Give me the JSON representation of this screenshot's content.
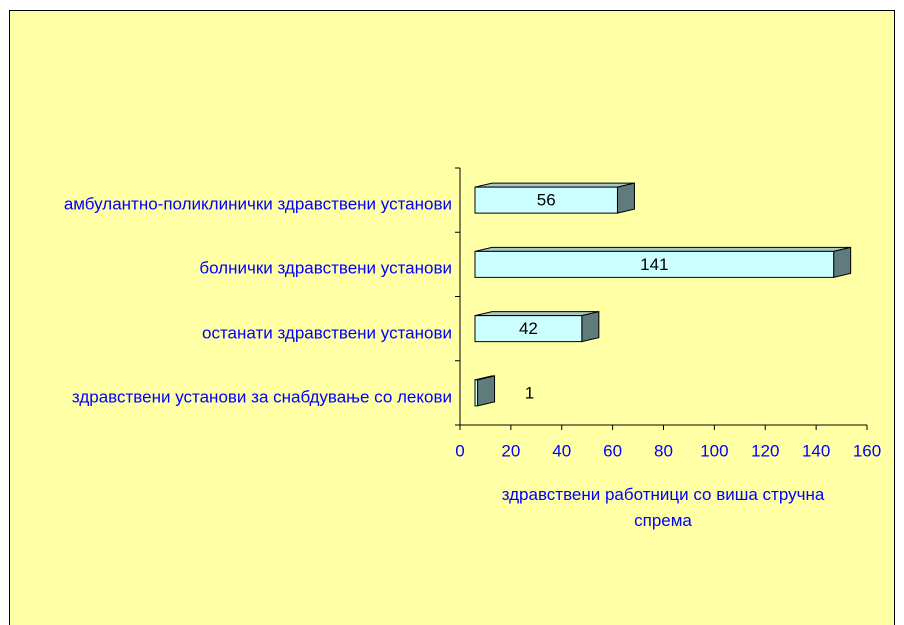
{
  "chart_data": {
    "type": "bar3d_horizontal",
    "categories": [
      "амбулантно-поликлинички здравствени установи",
      "болнички здравствени установи",
      "останати здравствени установи",
      "здравствени установи за снабдување со лекови"
    ],
    "values": [
      56,
      141,
      42,
      1
    ],
    "color": "#ccffff",
    "side_color": "#607b7b",
    "xlabel": "здравствени работници со виша стручна спрема",
    "xlim": [
      0,
      160
    ],
    "xticks": [
      0,
      20,
      40,
      60,
      80,
      100,
      120,
      140,
      160
    ],
    "background": "#ffffa6"
  }
}
